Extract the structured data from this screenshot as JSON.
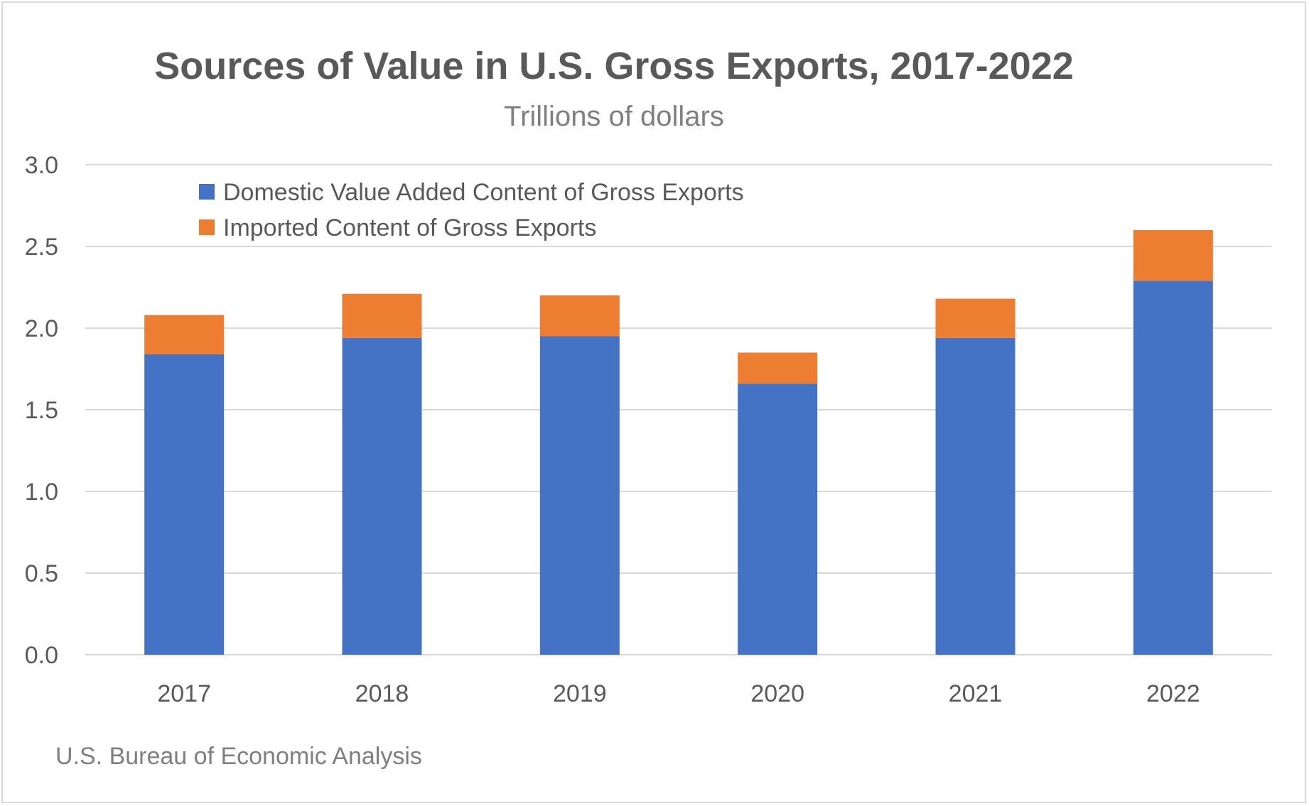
{
  "chart_data": {
    "type": "bar",
    "stacked": true,
    "title": "Sources of Value in U.S. Gross Exports, 2017-2022",
    "subtitle": "Trillions of dollars",
    "source": "U.S. Bureau of Economic Analysis",
    "categories": [
      "2017",
      "2018",
      "2019",
      "2020",
      "2021",
      "2022"
    ],
    "series": [
      {
        "name": "Domestic Value Added Content of Gross Exports",
        "color": "#4472c4",
        "values": [
          1.84,
          1.94,
          1.95,
          1.66,
          1.94,
          2.29
        ]
      },
      {
        "name": "Imported Content of Gross Exports",
        "color": "#ed7d31",
        "values": [
          0.24,
          0.27,
          0.25,
          0.19,
          0.24,
          0.31
        ]
      }
    ],
    "ylim": [
      0,
      3.0
    ],
    "yticks": [
      "0.0",
      "0.5",
      "1.0",
      "1.5",
      "2.0",
      "2.5",
      "3.0"
    ],
    "ytick_values": [
      0,
      0.5,
      1.0,
      1.5,
      2.0,
      2.5,
      3.0
    ],
    "grid": true,
    "legend_position": "top-left"
  }
}
